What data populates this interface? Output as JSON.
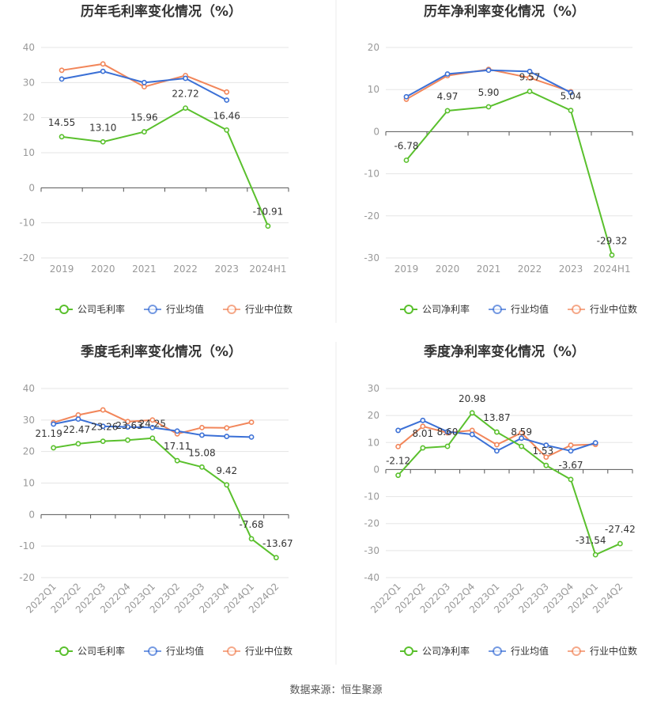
{
  "source": "数据来源：恒生聚源",
  "colors": {
    "company": "#5ac02d",
    "industry_avg": "#3b70d6",
    "industry_median": "#f2865a",
    "axis": "#555555",
    "grid": "#e5e5e5",
    "label": "#333333",
    "tick": "#999999"
  },
  "chart_data": [
    {
      "type": "line",
      "title": "历年毛利率变化情况（%）",
      "categories": [
        "2019",
        "2020",
        "2021",
        "2022",
        "2023",
        "2024H1"
      ],
      "ylim": [
        -20,
        40
      ],
      "yticks": [
        -20,
        -10,
        0,
        10,
        20,
        30,
        40
      ],
      "legend_position": "bottom",
      "series": [
        {
          "name": "公司毛利率",
          "key": "company",
          "values": [
            14.55,
            13.1,
            15.96,
            22.72,
            16.46,
            -10.91
          ],
          "labels": [
            "14.55",
            "13.10",
            "15.96",
            "22.72",
            "16.46",
            "-10.91"
          ]
        },
        {
          "name": "行业均值",
          "key": "industry_avg",
          "values": [
            31.0,
            33.2,
            30.0,
            31.2,
            25.0,
            null
          ]
        },
        {
          "name": "行业中位数",
          "key": "industry_median",
          "values": [
            33.5,
            35.3,
            28.8,
            32.0,
            27.3,
            null
          ]
        }
      ]
    },
    {
      "type": "line",
      "title": "历年净利率变化情况（%）",
      "categories": [
        "2019",
        "2020",
        "2021",
        "2022",
        "2023",
        "2024H1"
      ],
      "ylim": [
        -30,
        20
      ],
      "yticks": [
        -30,
        -20,
        -10,
        0,
        10,
        20
      ],
      "legend_position": "bottom",
      "series": [
        {
          "name": "公司净利率",
          "key": "company",
          "values": [
            -6.78,
            4.97,
            5.9,
            9.57,
            5.04,
            -29.32
          ],
          "labels": [
            "-6.78",
            "4.97",
            "5.90",
            "9.57",
            "5.04",
            "-29.32"
          ]
        },
        {
          "name": "行业均值",
          "key": "industry_avg",
          "values": [
            8.3,
            13.7,
            14.6,
            14.3,
            9.3,
            null
          ]
        },
        {
          "name": "行业中位数",
          "key": "industry_median",
          "values": [
            7.7,
            13.3,
            14.8,
            12.8,
            9.5,
            null
          ]
        }
      ]
    },
    {
      "type": "line",
      "title": "季度毛利率变化情况（%）",
      "categories": [
        "2022Q1",
        "2022Q2",
        "2022Q3",
        "2022Q4",
        "2023Q1",
        "2023Q2",
        "2023Q3",
        "2023Q4",
        "2024Q1",
        "2024Q2"
      ],
      "ylim": [
        -20,
        40
      ],
      "yticks": [
        -20,
        -10,
        0,
        10,
        20,
        30,
        40
      ],
      "legend_position": "bottom",
      "series": [
        {
          "name": "公司毛利率",
          "key": "company",
          "values": [
            21.19,
            22.47,
            23.26,
            23.63,
            24.25,
            17.11,
            15.08,
            9.42,
            -7.68,
            -13.67
          ],
          "labels": [
            "21.19",
            "22.47",
            "23.26",
            "23.63",
            "24.25",
            "17.11",
            "15.08",
            "9.42",
            "-7.68",
            "-13.67"
          ]
        },
        {
          "name": "行业均值",
          "key": "industry_avg",
          "values": [
            28.7,
            30.3,
            28.0,
            27.8,
            27.6,
            26.5,
            25.2,
            24.8,
            24.6,
            null
          ]
        },
        {
          "name": "行业中位数",
          "key": "industry_median",
          "values": [
            29.2,
            31.6,
            33.2,
            29.5,
            30.0,
            25.6,
            27.6,
            27.5,
            29.3,
            null
          ]
        }
      ]
    },
    {
      "type": "line",
      "title": "季度净利率变化情况（%）",
      "categories": [
        "2022Q1",
        "2022Q2",
        "2022Q3",
        "2022Q4",
        "2023Q1",
        "2023Q2",
        "2023Q3",
        "2023Q4",
        "2024Q1",
        "2024Q2"
      ],
      "ylim": [
        -40,
        30
      ],
      "yticks": [
        -40,
        -30,
        -20,
        -10,
        0,
        10,
        20,
        30
      ],
      "legend_position": "bottom",
      "series": [
        {
          "name": "公司净利率",
          "key": "company",
          "values": [
            -2.12,
            8.01,
            8.6,
            20.98,
            13.87,
            8.59,
            1.53,
            -3.67,
            -31.54,
            -27.42
          ],
          "labels": [
            "-2.12",
            "8.01",
            "8.60",
            "20.98",
            "13.87",
            "8.59",
            "1.53",
            "-3.67",
            "-31.54",
            "-27.42"
          ]
        },
        {
          "name": "行业均值",
          "key": "industry_avg",
          "values": [
            14.5,
            18.2,
            14.0,
            13.0,
            6.9,
            11.6,
            9.0,
            6.9,
            9.9,
            null
          ]
        },
        {
          "name": "行业中位数",
          "key": "industry_median",
          "values": [
            8.5,
            16.0,
            13.6,
            14.5,
            9.2,
            13.6,
            4.6,
            9.0,
            9.3,
            null
          ]
        }
      ]
    }
  ]
}
